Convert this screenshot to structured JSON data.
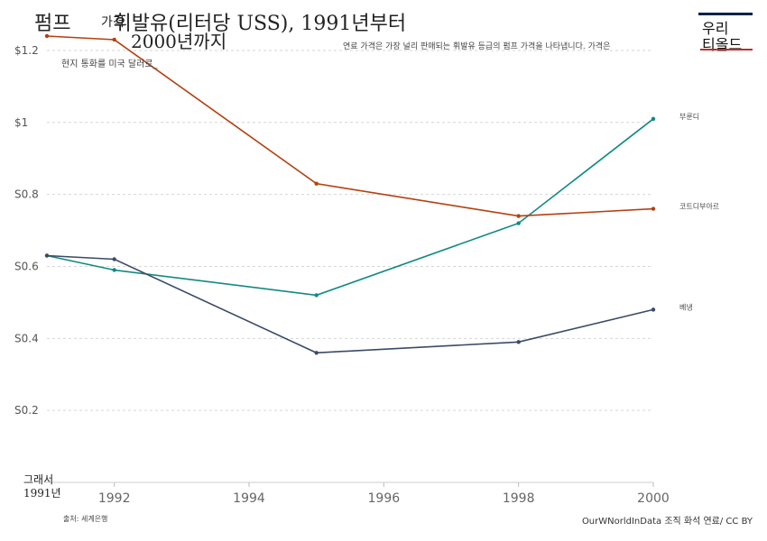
{
  "header": {
    "title_prefix": "펌프",
    "title_small": "가격",
    "title_main": "휘발유(리터당 USS), 1991년부터",
    "title_line2": "2000년까지",
    "subtitle_left": "현지 통화를 미국 달러로_",
    "subtitle_right": "연료 가격은 가장 널리 판매되는 휘발유 등급의 펌프 가격을 나타냅니다. 가격은"
  },
  "logo": {
    "line1": "우리",
    "line2": "티올드",
    "bar_color": "#002147",
    "accent_color": "#be2d2d"
  },
  "footer": {
    "source": "출처: 세계은행",
    "credit": "OurWNorldInData 조직 화석 연료/ CC BY"
  },
  "start_label": {
    "line1": "그래서",
    "line2": "1991년"
  },
  "chart_data": {
    "type": "line",
    "x": [
      1991,
      1992,
      1995,
      1998,
      2000
    ],
    "xticks": [
      1992,
      1994,
      1996,
      1998,
      2000
    ],
    "xtick_labels": [
      "1992",
      "1994",
      "1996",
      "1998",
      "2000"
    ],
    "yticks": [
      0.2,
      0.4,
      0.6,
      0.8,
      1.0,
      1.2
    ],
    "ytick_labels": [
      "S0.2",
      "S0.4",
      "S0.6",
      "S0.8",
      "$1",
      "$1.2"
    ],
    "xlim": [
      1991,
      2000
    ],
    "ylim": [
      0,
      1.25
    ],
    "grid": true,
    "series": [
      {
        "name": "부룬디",
        "color": "#0f8a82",
        "values": [
          0.63,
          0.59,
          0.52,
          0.72,
          1.01
        ]
      },
      {
        "name": "코트디부아르",
        "color": "#b5400f",
        "values": [
          1.24,
          1.23,
          0.83,
          0.74,
          0.76
        ]
      },
      {
        "name": "베냉",
        "color": "#3b4a66",
        "values": [
          0.63,
          0.62,
          0.36,
          0.39,
          0.48
        ]
      }
    ]
  }
}
